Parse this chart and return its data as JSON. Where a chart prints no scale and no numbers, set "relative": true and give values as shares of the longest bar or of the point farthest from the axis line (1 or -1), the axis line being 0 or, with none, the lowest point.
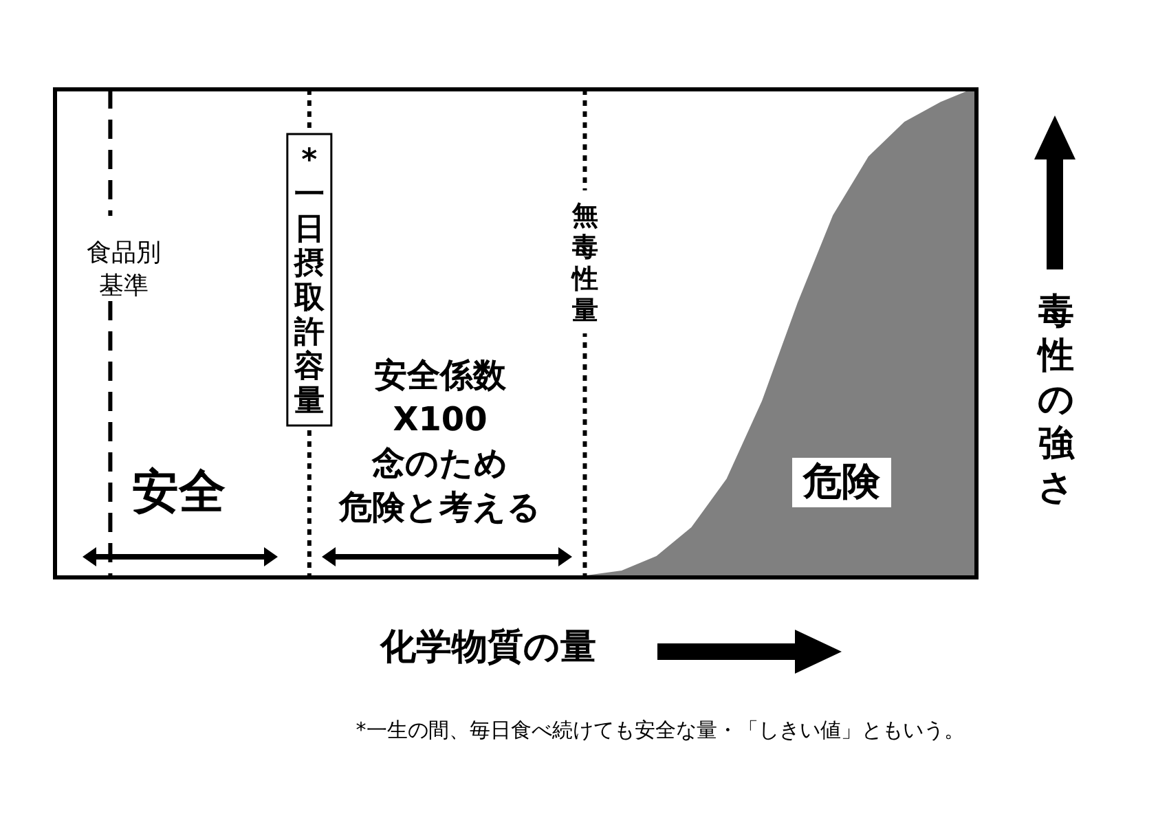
{
  "chart_data": {
    "type": "area",
    "relative": true,
    "xlabel": "化学物質の量",
    "ylabel": "毒性の強さ",
    "categories": [
      null,
      null,
      null,
      null,
      null,
      null,
      null,
      null,
      null,
      null,
      null,
      null,
      null,
      null,
      null,
      null,
      null,
      null,
      null,
      null,
      null,
      null,
      null,
      null,
      null,
      null,
      null
    ],
    "legend": false,
    "series": [
      {
        "color": "#808080",
        "values": [
          0,
          0,
          0,
          0,
          0,
          0,
          0,
          0,
          0,
          0,
          0,
          0,
          0,
          0,
          0,
          0,
          0.01,
          0.04,
          0.1,
          0.2,
          0.36,
          0.56,
          0.74,
          0.86,
          0.93,
          0.97,
          1
        ]
      }
    ],
    "annotations": [
      "食品別基準",
      "*一日摂取許容量",
      "無毒性量",
      "安全",
      "安全係数X100念のため危険と考える",
      "危険",
      "*一生の間、毎日食べ続けても安全な量・「しきい値」ともいう。"
    ]
  }
}
